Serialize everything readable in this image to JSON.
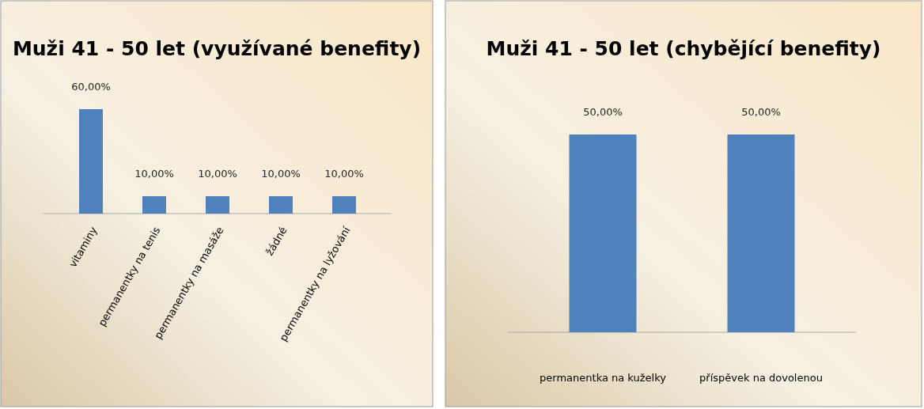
{
  "chart_data": [
    {
      "type": "bar",
      "title": "Muži 41 - 50 let (využívané benefity)",
      "categories": [
        "vitaminy",
        "permanentky na tenis",
        "permanentky na masáže",
        "žádné",
        "permanentky na lyžování"
      ],
      "series": [
        {
          "color": "#4f81bd",
          "values": [
            60,
            10,
            10,
            10,
            10
          ],
          "value_labels": [
            "60,00%",
            "10,00%",
            "10,00%",
            "10,00%",
            "10,00%"
          ]
        }
      ]
    },
    {
      "type": "bar",
      "title": "Muži 41 - 50 let (chybějící benefity)",
      "categories": [
        "permanentka na kuželky",
        "příspěvek na dovolenou"
      ],
      "series": [
        {
          "color": "#4f81bd",
          "values": [
            50,
            50
          ],
          "value_labels": [
            "50,00%",
            "50,00%"
          ]
        }
      ]
    }
  ]
}
